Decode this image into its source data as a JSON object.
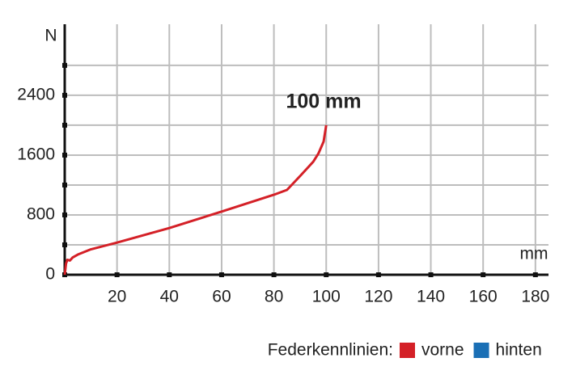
{
  "chart_data": {
    "type": "line",
    "x_label": "mm",
    "y_label": "N",
    "annotation": "100 mm",
    "legend_title": "Federkennlinien:",
    "x": [
      0,
      0.5,
      1,
      2,
      3,
      5,
      10,
      20,
      40,
      60,
      80,
      85,
      90,
      95,
      97,
      99,
      100
    ],
    "series": [
      {
        "name": "vorne",
        "color": "#d42027",
        "values": [
          0,
          150,
          200,
          190,
          230,
          270,
          340,
          430,
          625,
          845,
          1070,
          1135,
          1320,
          1510,
          1620,
          1780,
          2000
        ]
      },
      {
        "name": "hinten",
        "color": "#1a6fb5",
        "values": [
          null,
          null,
          null,
          null,
          null,
          null,
          null,
          null,
          null,
          null,
          null,
          null,
          null,
          null,
          null,
          null,
          null
        ]
      }
    ],
    "xlim": [
      0,
      185
    ],
    "ylim": [
      0,
      3350
    ],
    "xticks": [
      20,
      40,
      60,
      80,
      100,
      120,
      140,
      160,
      180
    ],
    "yticks": [
      0,
      800,
      1600,
      2400
    ],
    "yminor": [
      400,
      1200,
      2000,
      2800
    ],
    "grid": true
  }
}
